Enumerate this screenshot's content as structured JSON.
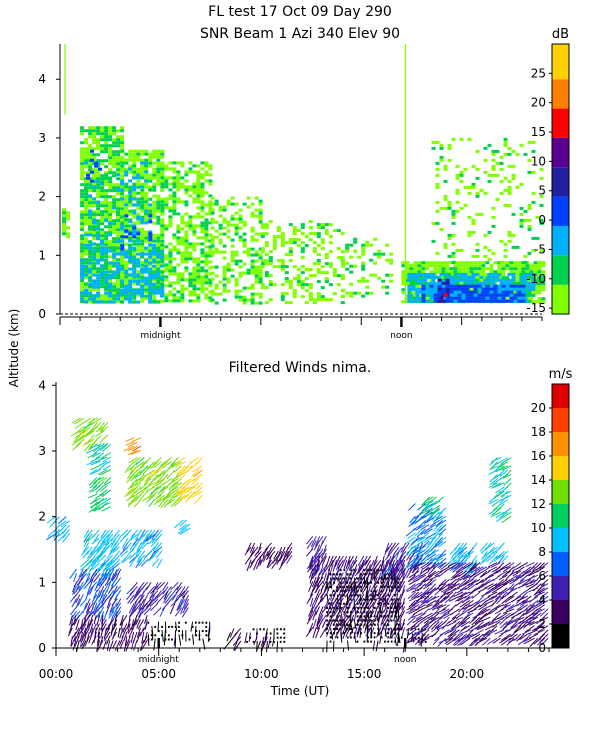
{
  "header": {
    "line1": "FL test  17 Oct 09 Day 290",
    "line2": "SNR Beam 1 Azi 340 Elev 90"
  },
  "shared_ylabel": "Altitude (km)",
  "chart_data": [
    {
      "type": "heatmap",
      "title": "SNR Beam 1 Azi 340 Elev 90",
      "ylim": [
        0,
        4.6
      ],
      "xlim": [
        0,
        24
      ],
      "yticks": [
        "0",
        "1",
        "2",
        "3",
        "4"
      ],
      "marker_labels": [
        {
          "label": "midnight",
          "x": 5.0
        },
        {
          "label": "noon",
          "x": 17.0
        }
      ],
      "colorbar": {
        "unit": "dB",
        "range": [
          -16,
          30
        ],
        "ticks": [
          "-15",
          "-10",
          "-5",
          "0",
          "5",
          "10",
          "15",
          "20",
          "25"
        ],
        "colors": [
          "#7fff00",
          "#00d050",
          "#00b0ff",
          "#0040ff",
          "#2020a0",
          "#5a0090",
          "#ff0000",
          "#ff8000",
          "#ffd000"
        ],
        "bounds": [
          -16,
          -11,
          -6,
          -1,
          4,
          9,
          14,
          19,
          24,
          30
        ]
      },
      "echo_regions": [
        {
          "x0": 0.1,
          "x1": 0.3,
          "y0": 1.3,
          "y1": 1.8,
          "level": -12,
          "dens": 0.8
        },
        {
          "x0": 1.0,
          "x1": 3.0,
          "y0": 0.2,
          "y1": 3.2,
          "level": -11,
          "dens": 0.8
        },
        {
          "x0": 3.0,
          "x1": 5.0,
          "y0": 0.2,
          "y1": 2.8,
          "level": -12,
          "dens": 0.75
        },
        {
          "x0": 5.0,
          "x1": 7.5,
          "y0": 0.2,
          "y1": 2.6,
          "level": -12,
          "dens": 0.6
        },
        {
          "x0": 7.5,
          "x1": 10.0,
          "y0": 0.2,
          "y1": 2.0,
          "level": -12,
          "dens": 0.4
        },
        {
          "x0": 10.0,
          "x1": 14.0,
          "y0": 0.2,
          "y1": 1.6,
          "level": -12,
          "dens": 0.3
        },
        {
          "x0": 14.0,
          "x1": 16.5,
          "y0": 0.3,
          "y1": 1.3,
          "level": -12,
          "dens": 0.25
        },
        {
          "x0": 1.0,
          "x1": 5.0,
          "y0": 0.2,
          "y1": 1.2,
          "level": -5,
          "dens": 0.55
        },
        {
          "x0": 1.2,
          "x1": 4.5,
          "y0": 1.2,
          "y1": 2.6,
          "level": -5,
          "dens": 0.2
        },
        {
          "x0": 1.3,
          "x1": 2.0,
          "y0": 2.2,
          "y1": 2.8,
          "level": 0,
          "dens": 0.2
        },
        {
          "x0": 3.0,
          "x1": 4.5,
          "y0": 1.0,
          "y1": 1.8,
          "level": 0,
          "dens": 0.15
        },
        {
          "x0": 17.0,
          "x1": 24.0,
          "y0": 0.2,
          "y1": 0.9,
          "level": -12,
          "dens": 0.85
        },
        {
          "x0": 17.3,
          "x1": 23.5,
          "y0": 0.2,
          "y1": 0.7,
          "level": -5,
          "dens": 0.8
        },
        {
          "x0": 18.0,
          "x1": 23.0,
          "y0": 0.2,
          "y1": 0.5,
          "level": 0,
          "dens": 0.85
        },
        {
          "x0": 18.8,
          "x1": 19.3,
          "y0": 0.2,
          "y1": 0.6,
          "level": 5,
          "dens": 0.6
        },
        {
          "x0": 18.9,
          "x1": 19.2,
          "y0": 0.2,
          "y1": 0.4,
          "level": 15,
          "dens": 0.7
        },
        {
          "x0": 18.5,
          "x1": 24.0,
          "y0": 0.9,
          "y1": 3.0,
          "level": -12,
          "dens": 0.15
        }
      ],
      "vertical_streaks": [
        {
          "x": 0.25,
          "y0": 3.4,
          "y1": 4.6
        },
        {
          "x": 17.2,
          "y0": 0.2,
          "y1": 4.6
        }
      ]
    },
    {
      "type": "scatter",
      "title": "Filtered Winds nima.",
      "ylim": [
        0,
        4.05
      ],
      "xlim": [
        0,
        24
      ],
      "yticks": [
        "0",
        "1",
        "2",
        "3",
        "4"
      ],
      "xticks": [
        "00:00",
        "05:00",
        "10:00",
        "15:00",
        "20:00"
      ],
      "xlabel": "Time (UT)",
      "marker_labels": [
        {
          "label": "midnight",
          "x": 5.0
        },
        {
          "label": "noon",
          "x": 17.0
        }
      ],
      "colorbar": {
        "unit": "m/s",
        "range": [
          0,
          22
        ],
        "ticks": [
          "0",
          "2",
          "4",
          "6",
          "8",
          "10",
          "12",
          "14",
          "16",
          "18",
          "20"
        ],
        "colors": [
          "#000000",
          "#3a0060",
          "#4020b0",
          "#0060ff",
          "#00c0ff",
          "#00d060",
          "#70e000",
          "#ffd000",
          "#ff9000",
          "#ff4000",
          "#e00000"
        ],
        "bounds": [
          0,
          2,
          4,
          6,
          8,
          10,
          12,
          14,
          16,
          18,
          20,
          22
        ]
      },
      "wind_groups": [
        {
          "x0": 0.0,
          "x1": 0.7,
          "y0": 1.7,
          "y1": 2.0,
          "speed": 8.5,
          "dir": 225
        },
        {
          "x0": 1.2,
          "x1": 2.6,
          "y0": 3.1,
          "y1": 3.5,
          "speed": 13,
          "dir": 220
        },
        {
          "x0": 2.0,
          "x1": 2.8,
          "y0": 2.7,
          "y1": 3.1,
          "speed": 10,
          "dir": 210
        },
        {
          "x0": 2.0,
          "x1": 2.8,
          "y0": 2.1,
          "y1": 2.6,
          "speed": 11,
          "dir": 215
        },
        {
          "x0": 3.8,
          "x1": 6.2,
          "y0": 2.2,
          "y1": 2.9,
          "speed": 13,
          "dir": 220
        },
        {
          "x0": 3.8,
          "x1": 4.2,
          "y0": 3.0,
          "y1": 3.2,
          "speed": 17,
          "dir": 210
        },
        {
          "x0": 6.3,
          "x1": 7.2,
          "y0": 2.3,
          "y1": 2.9,
          "speed": 15,
          "dir": 215
        },
        {
          "x0": 6.2,
          "x1": 6.6,
          "y0": 1.8,
          "y1": 1.95,
          "speed": 9,
          "dir": 220
        },
        {
          "x0": 1.6,
          "x1": 3.2,
          "y0": 1.2,
          "y1": 1.8,
          "speed": 9,
          "dir": 230
        },
        {
          "x0": 3.5,
          "x1": 5.2,
          "y0": 1.3,
          "y1": 1.8,
          "speed": 8.5,
          "dir": 230
        },
        {
          "x0": 1.0,
          "x1": 3.2,
          "y0": 0.5,
          "y1": 1.2,
          "speed": 6,
          "dir": 240
        },
        {
          "x0": 3.8,
          "x1": 6.5,
          "y0": 0.6,
          "y1": 1.0,
          "speed": 5,
          "dir": 235
        },
        {
          "x0": 0.8,
          "x1": 4.5,
          "y0": 0.1,
          "y1": 0.5,
          "speed": 3,
          "dir": 250
        },
        {
          "x0": 4.5,
          "x1": 7.5,
          "y0": 0.1,
          "y1": 0.4,
          "speed": 1,
          "dir": 270
        },
        {
          "x0": 8.5,
          "x1": 9.0,
          "y0": 0.05,
          "y1": 0.3,
          "speed": 2.5,
          "dir": 240
        },
        {
          "x0": 9.3,
          "x1": 11.2,
          "y0": 0.1,
          "y1": 0.3,
          "speed": 1.5,
          "dir": 260
        },
        {
          "x0": 9.5,
          "x1": 11.5,
          "y0": 1.3,
          "y1": 1.6,
          "speed": 3,
          "dir": 240
        },
        {
          "x0": 12.5,
          "x1": 13.2,
          "y0": 1.2,
          "y1": 1.7,
          "speed": 5,
          "dir": 240
        },
        {
          "x0": 12.5,
          "x1": 17.0,
          "y0": 0.3,
          "y1": 1.4,
          "speed": 3.5,
          "dir": 245
        },
        {
          "x0": 13.2,
          "x1": 16.8,
          "y0": 0.1,
          "y1": 1.2,
          "speed": 1,
          "dir": 270
        },
        {
          "x0": 16.2,
          "x1": 18.0,
          "y0": 1.2,
          "y1": 1.6,
          "speed": 5,
          "dir": 240
        },
        {
          "x0": 16.5,
          "x1": 18.0,
          "y0": 0.05,
          "y1": 0.3,
          "speed": 1,
          "dir": 270
        },
        {
          "x0": 17.5,
          "x1": 19.0,
          "y0": 1.3,
          "y1": 2.2,
          "speed": 8,
          "dir": 220
        },
        {
          "x0": 18.2,
          "x1": 19.0,
          "y0": 2.1,
          "y1": 2.3,
          "speed": 11,
          "dir": 215
        },
        {
          "x0": 19.5,
          "x1": 20.5,
          "y0": 1.2,
          "y1": 1.6,
          "speed": 8.5,
          "dir": 230
        },
        {
          "x0": 21.0,
          "x1": 22.0,
          "y0": 1.4,
          "y1": 1.6,
          "speed": 9,
          "dir": 225
        },
        {
          "x0": 21.5,
          "x1": 22.2,
          "y0": 2.0,
          "y1": 2.9,
          "speed": 10,
          "dir": 215
        },
        {
          "x0": 17.5,
          "x1": 24.0,
          "y0": 0.1,
          "y1": 1.3,
          "speed": 4,
          "dir": 215
        }
      ]
    }
  ]
}
